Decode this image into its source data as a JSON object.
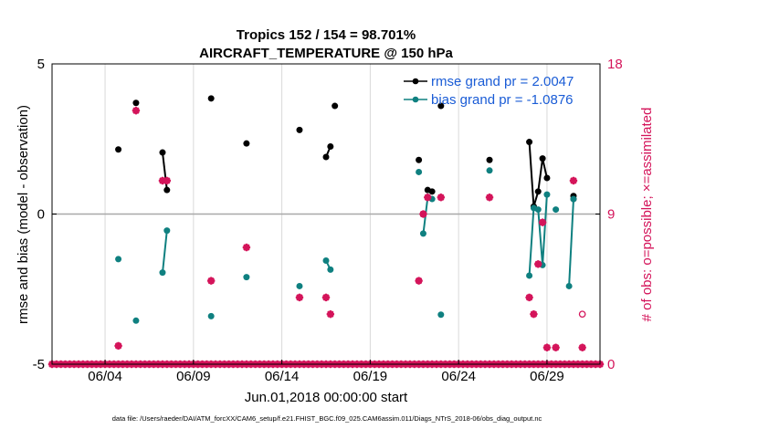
{
  "chart_data": {
    "type": "line",
    "title": "Tropics 152 / 154 = 98.701%",
    "subtitle": "AIRCRAFT_TEMPERATURE @ 150 hPa",
    "xlabel": "Jun.01,2018 00:00:00 start",
    "ylabel": "rmse and bias (model - observation)",
    "y2label": "# of obs: o=possible; ×=assimilated",
    "xlim": [
      0,
      31
    ],
    "ylim": [
      -5,
      5
    ],
    "y2lim": [
      0,
      18
    ],
    "xticks": [
      3,
      8,
      13,
      18,
      23,
      28
    ],
    "xtick_labels": [
      "06/04",
      "06/09",
      "06/14",
      "06/19",
      "06/24",
      "06/29"
    ],
    "yticks": [
      -5,
      0,
      5
    ],
    "ytick_labels": [
      "-5",
      "0",
      "5"
    ],
    "y2ticks": [
      0,
      9,
      18
    ],
    "y2tick_labels": [
      "0",
      "9",
      "18"
    ],
    "grid": true,
    "colors": {
      "rmse": "#000000",
      "bias": "#0f8080",
      "obs": "#d4145a",
      "zero_line": "#a8a8a8",
      "grid": "#d9d9d9",
      "legend_text": "#1a5cd6"
    },
    "legend": {
      "location": "top-right",
      "entries": [
        "rmse grand pr = 2.0047",
        "bias grand pr = -1.0876"
      ]
    },
    "footnote": "data file: /Users/raeder/DAI/ATM_forcXX/CAM6_setup/f.e21.FHIST_BGC.f09_025.CAM6assim.011/Diags_NTrS_2018-06/obs_diag_output.nc",
    "series": [
      {
        "name": "rmse",
        "color": "#000000",
        "marker": "dot",
        "segments": [
          [
            [
              3.75,
              2.15
            ]
          ],
          [
            [
              4.75,
              3.7
            ]
          ],
          [
            [
              6.25,
              2.05
            ],
            [
              6.5,
              0.8
            ]
          ],
          [
            [
              9.0,
              3.85
            ]
          ],
          [
            [
              11.0,
              2.35
            ]
          ],
          [
            [
              14.0,
              2.8
            ]
          ],
          [
            [
              15.5,
              1.9
            ],
            [
              15.75,
              2.25
            ]
          ],
          [
            [
              16.0,
              3.6
            ]
          ],
          [
            [
              20.75,
              1.8
            ]
          ],
          [
            [
              21.25,
              0.8
            ],
            [
              21.5,
              0.75
            ]
          ],
          [
            [
              22.0,
              3.6
            ]
          ],
          [
            [
              24.75,
              1.8
            ]
          ],
          [
            [
              27.0,
              2.4
            ],
            [
              27.25,
              0.25
            ],
            [
              27.5,
              0.75
            ],
            [
              27.75,
              1.85
            ],
            [
              28.0,
              1.2
            ]
          ],
          [
            [
              29.5,
              0.6
            ],
            [
              29.5,
              0.5
            ]
          ]
        ]
      },
      {
        "name": "bias",
        "color": "#0f8080",
        "marker": "dot",
        "segments": [
          [
            [
              3.75,
              -1.5
            ]
          ],
          [
            [
              4.75,
              -3.55
            ]
          ],
          [
            [
              6.25,
              -1.95
            ],
            [
              6.5,
              -0.55
            ]
          ],
          [
            [
              9.0,
              -3.4
            ]
          ],
          [
            [
              11.0,
              -2.1
            ]
          ],
          [
            [
              14.0,
              -2.4
            ]
          ],
          [
            [
              15.5,
              -1.55
            ],
            [
              15.75,
              -1.85
            ]
          ],
          [
            [
              20.75,
              1.4
            ]
          ],
          [
            [
              21.0,
              -0.65
            ],
            [
              21.25,
              0.55
            ],
            [
              21.5,
              0.5
            ]
          ],
          [
            [
              22.0,
              -3.35
            ]
          ],
          [
            [
              24.75,
              1.45
            ]
          ],
          [
            [
              27.0,
              -2.05
            ],
            [
              27.25,
              0.2
            ],
            [
              27.5,
              0.15
            ],
            [
              27.75,
              -1.7
            ],
            [
              28.0,
              0.65
            ]
          ],
          [
            [
              28.5,
              0.15
            ]
          ],
          [
            [
              29.25,
              -2.4
            ],
            [
              29.5,
              0.5
            ]
          ]
        ]
      }
    ],
    "obs_possible": [
      [
        3.75,
        1.1
      ],
      [
        4.75,
        15.2
      ],
      [
        6.25,
        11.0
      ],
      [
        6.5,
        11.0
      ],
      [
        9.0,
        5.0
      ],
      [
        11.0,
        7.0
      ],
      [
        14.0,
        4.0
      ],
      [
        15.5,
        4.0
      ],
      [
        15.75,
        3.0
      ],
      [
        20.75,
        5.0
      ],
      [
        21.0,
        9.0
      ],
      [
        21.25,
        10.0
      ],
      [
        22.0,
        10.0
      ],
      [
        24.75,
        10.0
      ],
      [
        27.0,
        4.0
      ],
      [
        27.25,
        3.0
      ],
      [
        27.5,
        6.0
      ],
      [
        27.75,
        8.5
      ],
      [
        28.0,
        1.0
      ],
      [
        28.5,
        1.0
      ],
      [
        29.5,
        11.0
      ],
      [
        30.0,
        3.0
      ],
      [
        30.0,
        1.0
      ]
    ],
    "obs_assimilated": [
      [
        3.75,
        1.1
      ],
      [
        4.75,
        15.2
      ],
      [
        6.25,
        11.0
      ],
      [
        6.5,
        11.0
      ],
      [
        9.0,
        5.0
      ],
      [
        11.0,
        7.0
      ],
      [
        14.0,
        4.0
      ],
      [
        15.5,
        4.0
      ],
      [
        15.75,
        3.0
      ],
      [
        20.75,
        5.0
      ],
      [
        21.0,
        9.0
      ],
      [
        21.25,
        10.0
      ],
      [
        22.0,
        10.0
      ],
      [
        24.75,
        10.0
      ],
      [
        27.0,
        4.0
      ],
      [
        27.25,
        3.0
      ],
      [
        27.5,
        6.0
      ],
      [
        27.75,
        8.5
      ],
      [
        28.0,
        1.0
      ],
      [
        28.5,
        1.0
      ],
      [
        29.5,
        11.0
      ],
      [
        30.0,
        1.0
      ]
    ]
  }
}
